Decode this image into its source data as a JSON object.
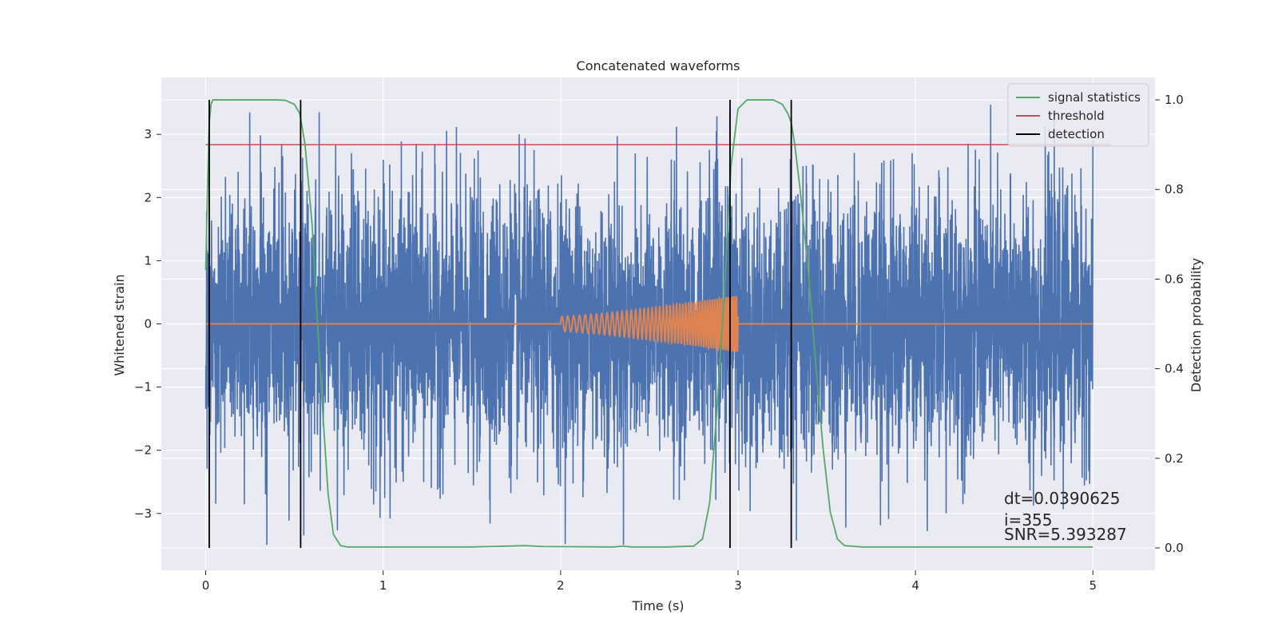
{
  "chart_data": {
    "type": "line",
    "title": "Concatenated waveforms",
    "xlabel": "Time (s)",
    "ylabel": "Whitened strain",
    "y2label": "Detection probability",
    "xlim": [
      -0.25,
      5.35
    ],
    "ylim": [
      -3.9,
      3.9
    ],
    "y2lim": [
      -0.05,
      1.05
    ],
    "xticks": [
      0,
      1,
      2,
      3,
      4,
      5
    ],
    "xtick_labels": [
      "0",
      "1",
      "2",
      "3",
      "4",
      "5"
    ],
    "yticks": [
      -3,
      -2,
      -1,
      0,
      1,
      2,
      3
    ],
    "ytick_labels": [
      "−3",
      "−2",
      "−1",
      "0",
      "1",
      "2",
      "3"
    ],
    "y2ticks": [
      0,
      0.2,
      0.4,
      0.6,
      0.8,
      1.0
    ],
    "y2tick_labels": [
      "0.0",
      "0.2",
      "0.4",
      "0.6",
      "0.8",
      "1.0"
    ],
    "grid": true,
    "legend_position": "top-right",
    "legend": [
      "signal statistics",
      "threshold",
      "detection"
    ],
    "colors": {
      "noise": "#4c72b0",
      "injection": "#dd8452",
      "signal_statistics": "#55a868",
      "threshold": "#c44e52",
      "detection": "#000000",
      "background": "#eaeaf2",
      "grid": "#ffffff"
    },
    "series": [
      {
        "role": "noise",
        "axis": "left",
        "x_range": [
          0,
          5
        ],
        "approx_std": 1.0,
        "approx_peak": 3.5
      },
      {
        "role": "injection",
        "axis": "left",
        "x_range": [
          0,
          5
        ],
        "chirp_start": 2.0,
        "chirp_end": 3.0,
        "amplitude_start": 0.12,
        "amplitude_end": 0.45,
        "frequency_start": 30,
        "frequency_end": 90
      },
      {
        "name": "signal statistics",
        "axis": "right",
        "x": [
          0,
          0.01,
          0.02,
          0.03,
          0.04,
          0.06,
          0.1,
          0.2,
          0.3,
          0.4,
          0.45,
          0.5,
          0.53,
          0.56,
          0.6,
          0.63,
          0.66,
          0.69,
          0.72,
          0.76,
          0.8,
          1.0,
          1.5,
          1.6,
          1.8,
          1.9,
          2.3,
          2.35,
          2.4,
          2.6,
          2.75,
          2.8,
          2.84,
          2.88,
          2.92,
          2.96,
          3.0,
          3.05,
          3.1,
          3.2,
          3.25,
          3.28,
          3.3,
          3.32,
          3.35,
          3.4,
          3.44,
          3.48,
          3.52,
          3.56,
          3.6,
          3.7,
          4.0,
          4.5,
          5.0
        ],
        "y": [
          0.62,
          0.8,
          0.95,
          0.99,
          1.0,
          1.0,
          1.0,
          1.0,
          1.0,
          1.0,
          0.999,
          0.99,
          0.97,
          0.9,
          0.72,
          0.5,
          0.3,
          0.12,
          0.03,
          0.005,
          0.002,
          0.002,
          0.002,
          0.003,
          0.005,
          0.003,
          0.002,
          0.004,
          0.002,
          0.002,
          0.004,
          0.02,
          0.1,
          0.3,
          0.55,
          0.85,
          0.98,
          1.0,
          1.0,
          1.0,
          0.99,
          0.97,
          0.95,
          0.9,
          0.8,
          0.6,
          0.4,
          0.22,
          0.08,
          0.02,
          0.005,
          0.002,
          0.002,
          0.002,
          0.002
        ]
      },
      {
        "name": "threshold",
        "axis": "right",
        "x": [
          0,
          5.1
        ],
        "y": [
          0.9,
          0.9
        ]
      },
      {
        "name": "detection",
        "axis": "right",
        "x": [
          0.02,
          0.535,
          2.955,
          3.3
        ],
        "y_range": [
          0,
          1
        ]
      }
    ],
    "annotations": [
      "dt=0.0390625",
      " i=355",
      "SNR=5.393287"
    ]
  }
}
